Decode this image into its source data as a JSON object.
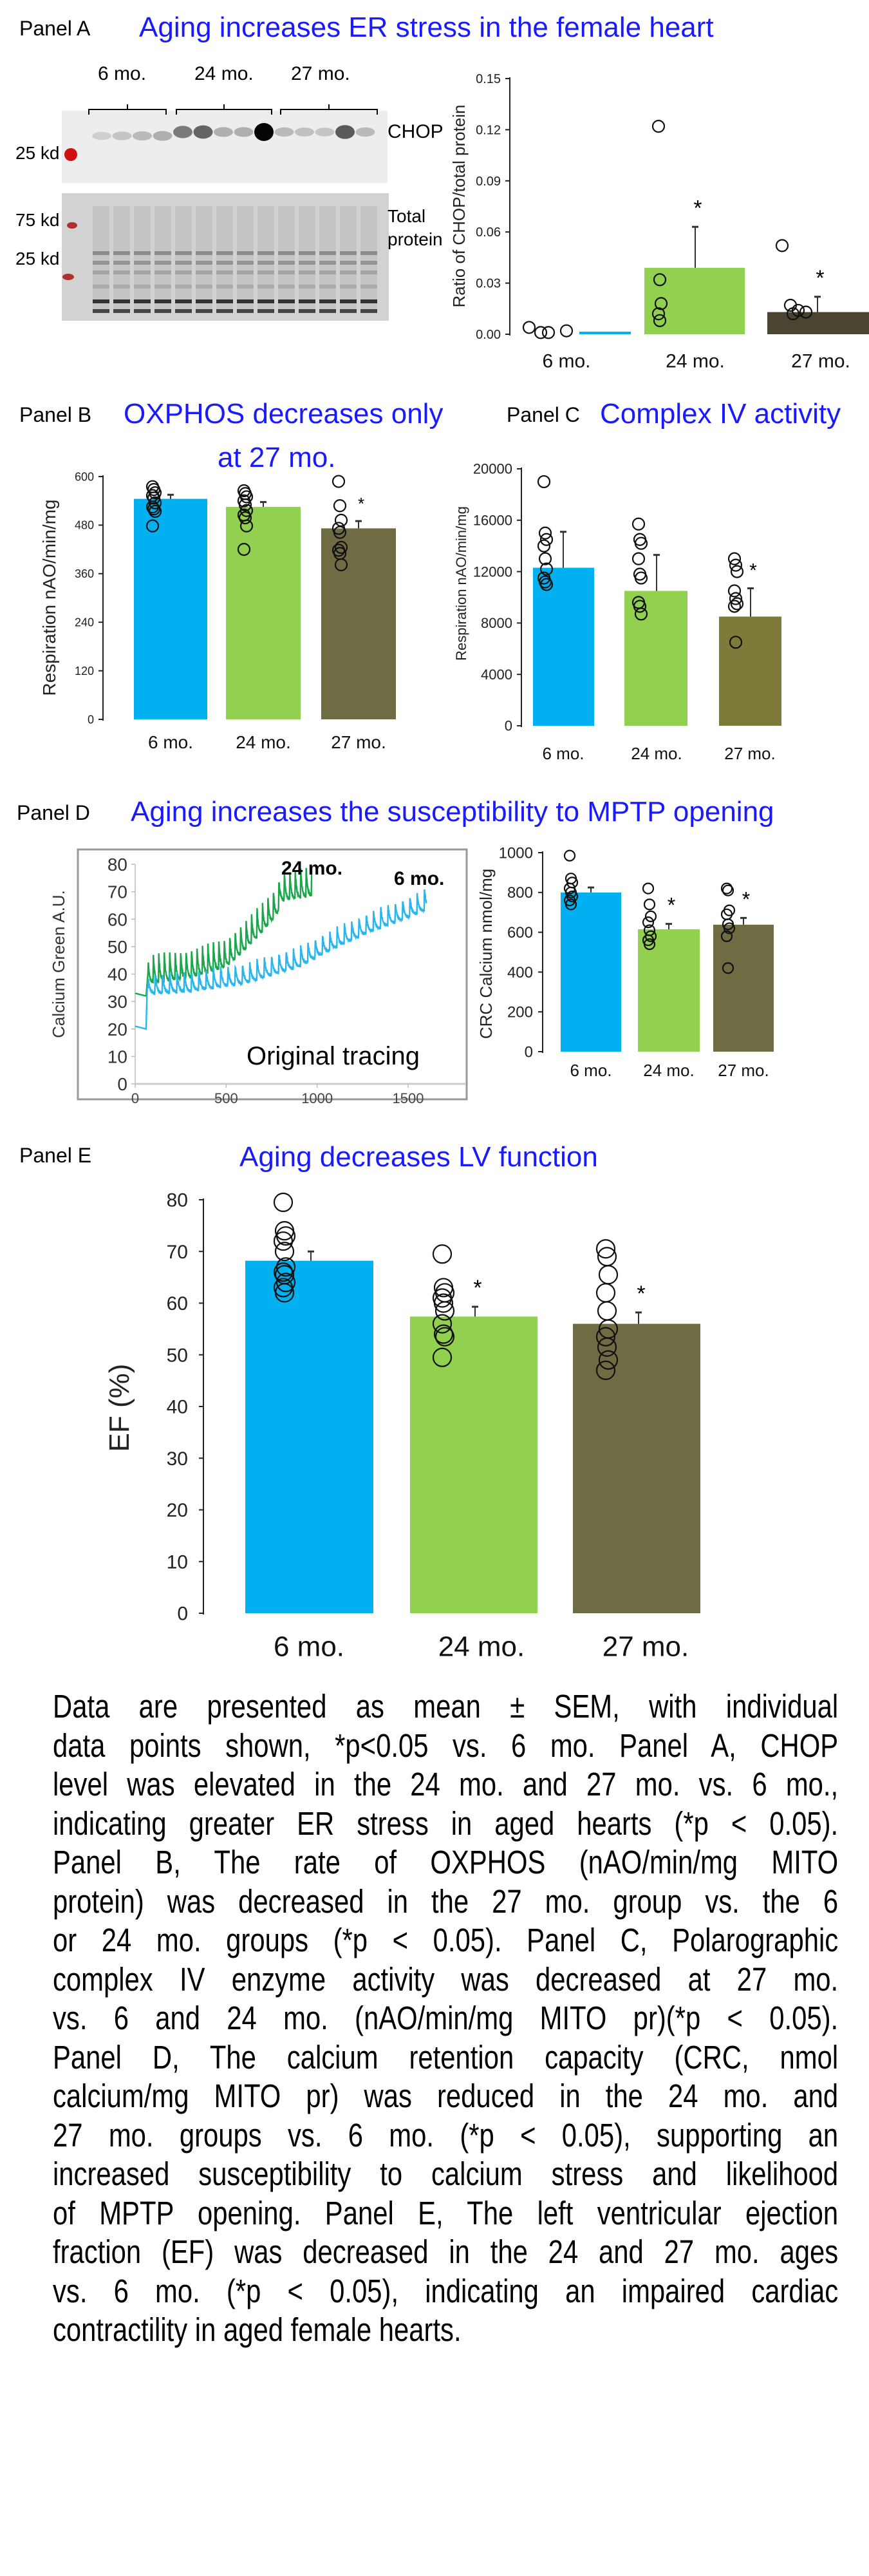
{
  "panels": {
    "a": {
      "label": "Panel A",
      "title": "Aging increases ER stress in the female heart"
    },
    "b": {
      "label": "Panel B",
      "title_line1": "OXPHOS decreases only",
      "title_line2": "at 27 mo."
    },
    "c": {
      "label": "Panel C",
      "title": "Complex IV activity"
    },
    "d": {
      "label": "Panel D",
      "title": "Aging increases the susceptibility to MPTP opening"
    },
    "e": {
      "label": "Panel E",
      "title": "Aging decreases LV function"
    }
  },
  "blot": {
    "groups": [
      "6 mo.",
      "24 mo.",
      "27 mo."
    ],
    "chop_label": "CHOP",
    "total_label_1": "Total",
    "total_label_2": "protein",
    "marker_top": "25 kd",
    "marker_mid": "75 kd",
    "marker_low": "25 kd"
  },
  "colors": {
    "c6": "#00b0f0",
    "c24": "#92d050",
    "c27": "#6f6b43",
    "c27a": "#4a4430",
    "c27c": "#7e7a3a",
    "title": "#1a1aff",
    "trace24": "#1aa64a",
    "trace6": "#29b6f0"
  },
  "chart_data": [
    {
      "id": "A",
      "type": "bar",
      "ylabel": "Ratio of CHOP/total protein",
      "categories": [
        "6 mo.",
        "24 mo.",
        "27 mo."
      ],
      "values": [
        0.001,
        0.039,
        0.013
      ],
      "error_top": [
        0.001,
        0.063,
        0.022
      ],
      "points": [
        [
          0.004,
          0.001,
          0.001,
          0.002
        ],
        [
          0.122,
          0.032,
          0.018,
          0.012,
          0.008
        ],
        [
          0.052,
          0.017,
          0.014,
          0.013,
          0.012
        ]
      ],
      "significant": [
        false,
        true,
        true
      ],
      "ylim": [
        0,
        0.15
      ],
      "yticks": [
        0.0,
        0.03,
        0.06,
        0.09,
        0.12,
        0.15
      ],
      "tick_decimals": 2
    },
    {
      "id": "B",
      "type": "bar",
      "ylabel": "Respiration nAO/min/mg",
      "categories": [
        "6 mo.",
        "24 mo.",
        "27 mo."
      ],
      "values": [
        545,
        525,
        472
      ],
      "error_top": [
        555,
        537,
        490
      ],
      "points": [
        [
          575,
          568,
          560,
          553,
          547,
          535,
          525,
          520,
          514,
          478
        ],
        [
          565,
          558,
          550,
          540,
          530,
          516,
          505,
          498,
          478,
          420
        ],
        [
          588,
          528,
          492,
          472,
          462,
          425,
          418,
          410,
          382
        ]
      ],
      "significant": [
        false,
        false,
        true
      ],
      "ylim": [
        0,
        600
      ],
      "yticks": [
        0,
        120,
        240,
        360,
        480,
        600
      ],
      "tick_decimals": 0
    },
    {
      "id": "C",
      "type": "bar",
      "ylabel": "Respiration nAO/min/mg",
      "categories": [
        "6 mo.",
        "24 mo.",
        "27 mo."
      ],
      "values": [
        12300,
        10500,
        8500
      ],
      "error_top": [
        15100,
        13300,
        10700
      ],
      "points": [
        [
          19000,
          15000,
          14500,
          14000,
          13000,
          12200,
          11500,
          11200,
          11000
        ],
        [
          15700,
          14500,
          14200,
          13000,
          11800,
          11500,
          9600,
          9300,
          8700
        ],
        [
          13000,
          12500,
          12000,
          10500,
          9900,
          9500,
          9300,
          6500
        ]
      ],
      "significant": [
        false,
        false,
        true
      ],
      "ylim": [
        0,
        20000
      ],
      "yticks": [
        0,
        4000,
        8000,
        12000,
        16000,
        20000
      ],
      "tick_decimals": 0
    },
    {
      "id": "D_trace",
      "type": "line",
      "ylabel": "Calcium Green A.U.",
      "annotation": "Original tracing",
      "xlim": [
        0,
        1800
      ],
      "xticks": [
        0,
        500,
        1000,
        1500
      ],
      "ylim": [
        0,
        80
      ],
      "yticks": [
        0,
        10,
        20,
        30,
        40,
        50,
        60,
        70,
        80
      ],
      "series": [
        {
          "name": "24 mo.",
          "color_key": "trace24",
          "pulse_period": 30,
          "pulse_amp": 10,
          "points": [
            [
              0,
              33
            ],
            [
              60,
              32
            ],
            [
              70,
              40
            ],
            [
              300,
              42
            ],
            [
              500,
              46
            ],
            [
              600,
              52
            ],
            [
              700,
              59
            ],
            [
              780,
              65
            ],
            [
              800,
              70
            ],
            [
              970,
              72
            ]
          ]
        },
        {
          "name": "6 mo.",
          "color_key": "trace6",
          "pulse_period": 40,
          "pulse_amp": 7,
          "points": [
            [
              0,
              21
            ],
            [
              60,
              20
            ],
            [
              66,
              35
            ],
            [
              300,
              36
            ],
            [
              600,
              39
            ],
            [
              900,
              45
            ],
            [
              1100,
              52
            ],
            [
              1300,
              58
            ],
            [
              1500,
              63
            ],
            [
              1600,
              66
            ]
          ]
        }
      ]
    },
    {
      "id": "D_crc",
      "type": "bar",
      "ylabel": "CRC Calcium nmol/mg",
      "categories": [
        "6 mo.",
        "24 mo.",
        "27 mo."
      ],
      "values": [
        800,
        615,
        638
      ],
      "error_top": [
        825,
        642,
        672
      ],
      "points": [
        [
          985,
          870,
          850,
          820,
          800,
          780,
          760,
          740
        ],
        [
          820,
          740,
          680,
          650,
          610,
          580,
          560,
          540
        ],
        [
          820,
          810,
          710,
          690,
          640,
          620,
          580,
          420
        ]
      ],
      "significant": [
        false,
        true,
        true
      ],
      "ylim": [
        0,
        1000
      ],
      "yticks": [
        0,
        200,
        400,
        600,
        800,
        1000
      ],
      "tick_decimals": 0
    },
    {
      "id": "E",
      "type": "bar",
      "ylabel": "EF (%)",
      "categories": [
        "6 mo.",
        "24 mo.",
        "27 mo."
      ],
      "values": [
        68.2,
        57.4,
        56.0
      ],
      "error_top": [
        70.0,
        59.3,
        58.2
      ],
      "points": [
        [
          79.5,
          74,
          73,
          72,
          70,
          67,
          66,
          65.5,
          64,
          63,
          62
        ],
        [
          69.5,
          63,
          62,
          61,
          60,
          58.5,
          56,
          54,
          53.5,
          49.5
        ],
        [
          70.5,
          69,
          65.5,
          62,
          58.5,
          55,
          53.5,
          51.5,
          49,
          47
        ]
      ],
      "significant": [
        false,
        true,
        true
      ],
      "ylim": [
        0,
        80
      ],
      "yticks": [
        0,
        10,
        20,
        30,
        40,
        50,
        60,
        70,
        80
      ],
      "tick_decimals": 0
    }
  ],
  "caption": {
    "lines": [
      "Data are presented as mean ± SEM, with individual",
      "data points shown, *p<0.05 vs. 6 mo. Panel A, CHOP",
      "level was elevated in the 24 mo. and 27 mo. vs. 6 mo.,",
      "indicating greater ER stress in aged hearts (*p < 0.05).",
      "Panel B, The rate of OXPHOS (nAO/min/mg MITO",
      "protein) was decreased in the 27 mo. group vs. the 6",
      "or 24 mo. groups (*p < 0.05). Panel C, Polarographic",
      "complex IV enzyme activity was decreased at 27 mo.",
      "vs. 6 and 24 mo. (nAO/min/mg MITO pr)(*p < 0.05).",
      "Panel D, The calcium retention capacity (CRC, nmol",
      "calcium/mg  MITO pr) was reduced in the 24 mo. and",
      "27 mo. groups vs. 6 mo. (*p < 0.05), supporting an",
      "increased susceptibility to calcium stress and likelihood",
      "of MPTP opening. Panel E, The left ventricular ejection",
      "fraction (EF) was decreased in the 24 and 27 mo. ages",
      "vs. 6 mo. (*p < 0.05), indicating an impaired cardiac",
      "contractility in aged female hearts."
    ]
  }
}
